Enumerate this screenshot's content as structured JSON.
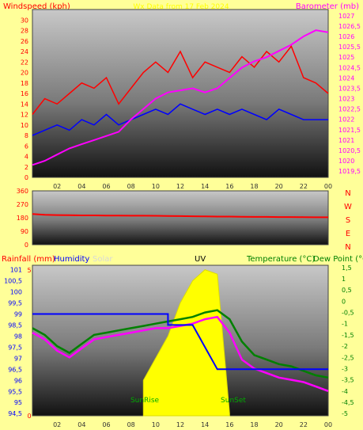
{
  "header": {
    "left_label": "Windspeed (kph)",
    "center_label": "Wx Data from 17 Feb 2024",
    "right_label": "Barometer (mb)"
  },
  "colors": {
    "background": "#ffff99",
    "wind_speed": "#ff0000",
    "wind_avg": "#0000ff",
    "pressure": "#ff00ff",
    "temperature": "#008000",
    "dew_point": "#ff00ff",
    "humidity": "#0000ff",
    "uv": "#ffff00",
    "label_red": "#ff0000",
    "label_magenta": "#ff00ff",
    "label_green": "#008000"
  },
  "x_axis": {
    "ticks": [
      "02",
      "04",
      "06",
      "08",
      "10",
      "12",
      "14",
      "16",
      "18",
      "20",
      "22",
      "00"
    ]
  },
  "chart_data": [
    {
      "type": "line",
      "name": "wind-pressure",
      "x_range_hours": [
        0,
        24
      ],
      "y_left": {
        "label": "Windspeed (kph)",
        "range": [
          0,
          32
        ],
        "ticks": [
          "0",
          "2",
          "4",
          "6",
          "8",
          "10",
          "12",
          "14",
          "16",
          "18",
          "20",
          "22",
          "24",
          "26",
          "28",
          "30"
        ]
      },
      "y_right": {
        "label": "Barometer (mb)",
        "range": [
          1019.2,
          1027.3
        ],
        "ticks": [
          "1019,5",
          "1020",
          "1020,5",
          "1021",
          "1021,5",
          "1022",
          "1022,5",
          "1023",
          "1023,5",
          "1024",
          "1024,5",
          "1025",
          "1025,5",
          "1026",
          "1026,5",
          "1027"
        ]
      },
      "series": [
        {
          "key": "gust",
          "axis": "left",
          "x": [
            0,
            1,
            2,
            3,
            4,
            5,
            6,
            7,
            8,
            9,
            10,
            11,
            12,
            13,
            14,
            15,
            16,
            17,
            18,
            19,
            20,
            21,
            22,
            23,
            24
          ],
          "y": [
            12,
            15,
            14,
            16,
            18,
            17,
            19,
            14,
            17,
            20,
            22,
            20,
            24,
            19,
            22,
            21,
            20,
            23,
            21,
            24,
            22,
            25,
            19,
            18,
            16
          ]
        },
        {
          "key": "average",
          "axis": "left",
          "x": [
            0,
            1,
            2,
            3,
            4,
            5,
            6,
            7,
            8,
            9,
            10,
            11,
            12,
            13,
            14,
            15,
            16,
            17,
            18,
            19,
            20,
            21,
            22,
            23,
            24
          ],
          "y": [
            8,
            9,
            10,
            9,
            11,
            10,
            12,
            10,
            11,
            12,
            13,
            12,
            14,
            13,
            12,
            13,
            12,
            13,
            12,
            11,
            13,
            12,
            11,
            11,
            11
          ]
        },
        {
          "key": "pressure",
          "axis": "right",
          "x": [
            0,
            1,
            2,
            3,
            4,
            5,
            6,
            7,
            8,
            9,
            10,
            11,
            12,
            13,
            14,
            15,
            16,
            17,
            18,
            19,
            20,
            21,
            22,
            23,
            24
          ],
          "y": [
            1019.8,
            1020.0,
            1020.3,
            1020.6,
            1020.8,
            1021.0,
            1021.2,
            1021.4,
            1022.0,
            1022.5,
            1023.0,
            1023.3,
            1023.4,
            1023.5,
            1023.3,
            1023.5,
            1024.0,
            1024.5,
            1024.8,
            1025.0,
            1025.3,
            1025.6,
            1026.0,
            1026.3,
            1026.2
          ]
        }
      ]
    },
    {
      "type": "line",
      "name": "wind-direction",
      "x_range_hours": [
        0,
        24
      ],
      "y_left": {
        "range": [
          0,
          360
        ],
        "ticks": [
          "0",
          "90",
          "180",
          "270",
          "360"
        ]
      },
      "y_right_labels": [
        "N",
        "W",
        "S",
        "E",
        "N"
      ],
      "series": [
        {
          "key": "direction",
          "axis": "left",
          "x": [
            0,
            1,
            2,
            3,
            4,
            5,
            6,
            7,
            8,
            9,
            10,
            11,
            12,
            13,
            14,
            15,
            16,
            17,
            18,
            19,
            20,
            21,
            22,
            23,
            24
          ],
          "y": [
            205,
            200,
            198,
            197,
            196,
            196,
            195,
            195,
            194,
            194,
            193,
            192,
            191,
            190,
            189,
            188,
            188,
            187,
            186,
            186,
            185,
            185,
            184,
            183,
            183
          ]
        }
      ]
    },
    {
      "type": "line",
      "name": "rain-temperature",
      "x_range_hours": [
        0,
        24
      ],
      "y_left": {
        "label": "Rainfall (mm)",
        "range": [
          94.4,
          101.2
        ],
        "ticks": [
          "94,5",
          "95",
          "95,5",
          "96",
          "96,5",
          "97",
          "97,5",
          "98",
          "98,5",
          "99",
          "99,5",
          "100",
          "100,5",
          "101"
        ]
      },
      "y_left2": {
        "ticks": [
          "0",
          "5"
        ]
      },
      "y_right": {
        "label": "Temperature (°C)",
        "range": [
          -5.1,
          1.6
        ],
        "ticks": [
          "1,5",
          "1",
          "0,5",
          "0",
          "-0,5",
          "-1",
          "-1,5",
          "-2",
          "-2,5",
          "-3",
          "-3,5",
          "-4",
          "-4,5",
          "-5"
        ]
      },
      "labels": {
        "humidity": "Humidity",
        "solar": "Solar",
        "uv": "UV",
        "dew_point": "Dew Point (°C",
        "sunrise": "SunRise",
        "sunset": "SunSet"
      },
      "series": [
        {
          "key": "temperature",
          "axis": "right",
          "x": [
            0,
            1,
            2,
            3,
            4,
            5,
            6,
            7,
            8,
            9,
            10,
            11,
            12,
            13,
            14,
            15,
            16,
            17,
            18,
            19,
            20,
            21,
            22,
            23,
            24
          ],
          "y": [
            -1.2,
            -1.5,
            -2.0,
            -2.3,
            -1.9,
            -1.5,
            -1.4,
            -1.3,
            -1.2,
            -1.1,
            -1.0,
            -0.9,
            -0.8,
            -0.7,
            -0.5,
            -0.4,
            -0.8,
            -1.8,
            -2.4,
            -2.6,
            -2.8,
            -2.9,
            -3.1,
            -3.3,
            -3.4
          ]
        },
        {
          "key": "dew_point",
          "axis": "right",
          "x": [
            0,
            1,
            2,
            3,
            4,
            5,
            6,
            7,
            8,
            9,
            10,
            11,
            12,
            13,
            14,
            15,
            16,
            17,
            18,
            19,
            20,
            21,
            22,
            23,
            24
          ],
          "y": [
            -1.4,
            -1.7,
            -2.2,
            -2.5,
            -2.1,
            -1.7,
            -1.6,
            -1.5,
            -1.4,
            -1.3,
            -1.2,
            -1.2,
            -1.1,
            -1.0,
            -0.8,
            -0.7,
            -1.4,
            -2.6,
            -3.0,
            -3.2,
            -3.4,
            -3.5,
            -3.6,
            -3.8,
            -4.0
          ]
        },
        {
          "key": "humidity",
          "axis": "left",
          "x": [
            0,
            3,
            3,
            9,
            9,
            11,
            11,
            13,
            13,
            15,
            15,
            16,
            16,
            20,
            20,
            24
          ],
          "y": [
            99,
            99,
            99,
            99,
            99,
            99,
            98.5,
            98.5,
            98.5,
            96.5,
            96.5,
            96.5,
            96.5,
            96.5,
            96.5,
            96.5
          ]
        },
        {
          "key": "uv",
          "axis": "left",
          "x": [
            9,
            10,
            11,
            12,
            13,
            14,
            15,
            16
          ],
          "y": [
            96,
            97,
            98,
            99.5,
            100.5,
            101,
            100.8,
            94.5
          ]
        }
      ]
    }
  ]
}
